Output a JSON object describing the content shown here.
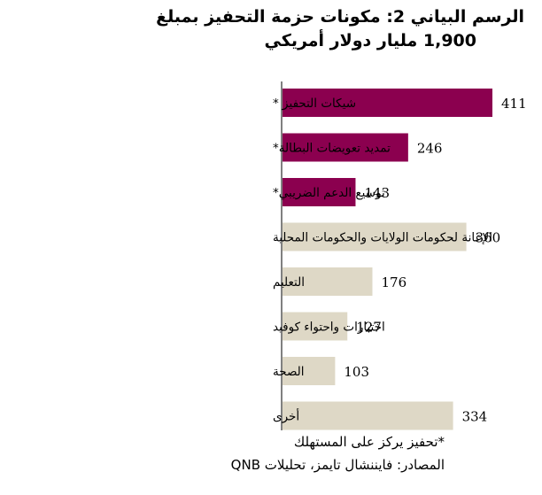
{
  "chart_data": {
    "type": "bar",
    "orientation": "horizontal",
    "title_line1": "الرسم البياني 2: مكونات حزمة التحفيز بمبلغ",
    "title_line2": "1,900 مليار دولار أمريكي",
    "categories": [
      "شيكات التحفيز *",
      "تمديد تعويضات البطالة*",
      "توسيع الدعم الضريبي*",
      "الإعانة لحكومات الولايات والحكومات المحلية",
      "التعليم",
      "اختبارات واحتواء كوفيد",
      "الصحة",
      "أخرى"
    ],
    "values": [
      411,
      246,
      143,
      360,
      176,
      127,
      103,
      334
    ],
    "value_labels": [
      "411",
      "246",
      "143",
      "360",
      "176",
      "127",
      "103",
      "334"
    ],
    "consumer_focused": [
      true,
      true,
      true,
      false,
      false,
      false,
      false,
      false
    ],
    "colors": {
      "consumer": "#8b004f",
      "other": "#ded8c6"
    },
    "xlim": [
      0,
      411
    ],
    "xlabel": "",
    "ylabel": "",
    "grid": false,
    "legend": "none"
  },
  "footer": {
    "note": "*تحفيز يركز على المستهلك",
    "source": "المصادر: فايننشال تايمز، تحليلات QNB"
  }
}
